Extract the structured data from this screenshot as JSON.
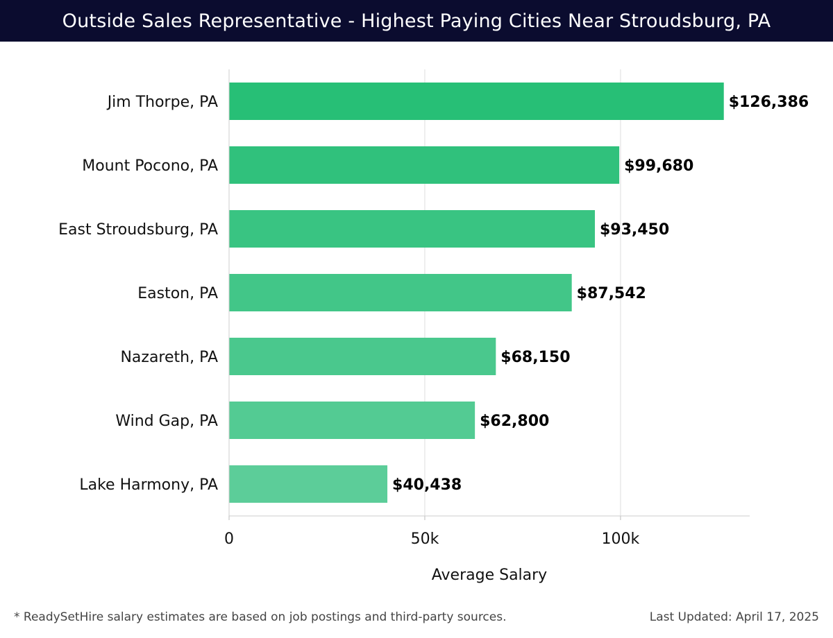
{
  "title": "Outside Sales Representative - Highest Paying Cities Near Stroudsburg, PA",
  "footer": {
    "note": "* ReadySetHire salary estimates are based on job postings and third-party sources.",
    "updated": "Last Updated: April 17, 2025"
  },
  "colors": {
    "header_bg": "#0b0c2f",
    "bar_top": "#27bf76",
    "bar_bottom": "#5ccd99",
    "grid": "#dddddd"
  },
  "chart_data": {
    "type": "bar",
    "orientation": "horizontal",
    "categories": [
      "Jim Thorpe, PA",
      "Mount Pocono, PA",
      "East Stroudsburg, PA",
      "Easton, PA",
      "Nazareth, PA",
      "Wind Gap, PA",
      "Lake Harmony, PA"
    ],
    "values": [
      126386,
      99680,
      93450,
      87542,
      68150,
      62800,
      40438
    ],
    "value_labels": [
      "$126,386",
      "$99,680",
      "$93,450",
      "$87,542",
      "$68,150",
      "$62,800",
      "$40,438"
    ],
    "xlabel": "Average Salary",
    "ylabel": "",
    "xlim": [
      0,
      133000
    ],
    "xticks": [
      0,
      50000,
      100000
    ],
    "xtick_labels": [
      "0",
      "50k",
      "100k"
    ],
    "grid": true,
    "legend": "none"
  }
}
